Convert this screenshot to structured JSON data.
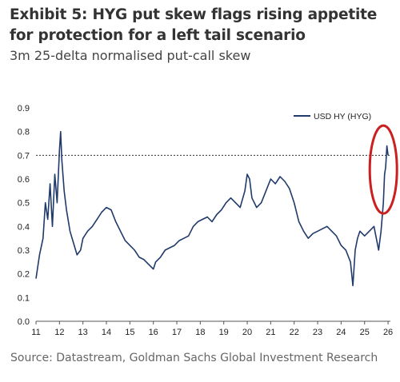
{
  "header": {
    "title": "Exhibit 5: HYG put skew flags rising appetite for protection for a left tail scenario",
    "subtitle": "3m 25-delta normalised put-call skew"
  },
  "footer": {
    "source": "Source: Datastream, Goldman Sachs Global Investment Research"
  },
  "chart_data": {
    "type": "line",
    "title": "",
    "xlabel": "",
    "ylabel": "",
    "ylim": [
      0,
      0.9
    ],
    "xlim": [
      11,
      26.1
    ],
    "y_ticks": [
      "0.0",
      "0.1",
      "0.2",
      "0.3",
      "0.4",
      "0.5",
      "0.6",
      "0.7",
      "0.8",
      "0.9"
    ],
    "x_ticks": [
      "11",
      "12",
      "13",
      "14",
      "15",
      "16",
      "17",
      "18",
      "19",
      "20",
      "21",
      "22",
      "23",
      "24",
      "25",
      "26"
    ],
    "grid": false,
    "legend_position": "top-right",
    "reference_line": {
      "y": 0.7,
      "style": "dotted"
    },
    "highlight": {
      "shape": "ellipse",
      "x_range": [
        25.6,
        26.0
      ],
      "color": "#cc1f1f"
    },
    "series": [
      {
        "name": "USD HY (HYG)",
        "color": "#1f3a6b",
        "x": [
          11.0,
          11.15,
          11.3,
          11.4,
          11.5,
          11.6,
          11.7,
          11.8,
          11.9,
          12.0,
          12.05,
          12.1,
          12.2,
          12.3,
          12.45,
          12.6,
          12.75,
          12.9,
          13.0,
          13.2,
          13.4,
          13.6,
          13.8,
          14.0,
          14.2,
          14.4,
          14.6,
          14.8,
          15.0,
          15.2,
          15.4,
          15.6,
          15.8,
          16.0,
          16.1,
          16.3,
          16.5,
          16.7,
          16.9,
          17.1,
          17.3,
          17.5,
          17.7,
          17.9,
          18.1,
          18.3,
          18.5,
          18.7,
          18.9,
          19.1,
          19.3,
          19.5,
          19.7,
          19.9,
          20.0,
          20.1,
          20.2,
          20.4,
          20.6,
          20.8,
          21.0,
          21.2,
          21.4,
          21.6,
          21.8,
          22.0,
          22.2,
          22.4,
          22.6,
          22.8,
          23.0,
          23.2,
          23.4,
          23.6,
          23.8,
          24.0,
          24.2,
          24.4,
          24.5,
          24.6,
          24.7,
          24.8,
          25.0,
          25.2,
          25.4,
          25.5,
          25.6,
          25.7,
          25.8,
          25.85,
          25.9,
          25.95,
          26.0
        ],
        "values": [
          0.18,
          0.28,
          0.35,
          0.5,
          0.43,
          0.58,
          0.4,
          0.62,
          0.5,
          0.72,
          0.8,
          0.68,
          0.55,
          0.47,
          0.38,
          0.33,
          0.28,
          0.3,
          0.35,
          0.38,
          0.4,
          0.43,
          0.46,
          0.48,
          0.47,
          0.42,
          0.38,
          0.34,
          0.32,
          0.3,
          0.27,
          0.26,
          0.24,
          0.22,
          0.25,
          0.27,
          0.3,
          0.31,
          0.32,
          0.34,
          0.35,
          0.36,
          0.4,
          0.42,
          0.43,
          0.44,
          0.42,
          0.45,
          0.47,
          0.5,
          0.52,
          0.5,
          0.48,
          0.55,
          0.62,
          0.6,
          0.52,
          0.48,
          0.5,
          0.55,
          0.6,
          0.58,
          0.61,
          0.59,
          0.56,
          0.5,
          0.42,
          0.38,
          0.35,
          0.37,
          0.38,
          0.39,
          0.4,
          0.38,
          0.36,
          0.32,
          0.3,
          0.25,
          0.15,
          0.3,
          0.35,
          0.38,
          0.36,
          0.38,
          0.4,
          0.35,
          0.3,
          0.38,
          0.5,
          0.62,
          0.65,
          0.74,
          0.7
        ]
      }
    ]
  }
}
